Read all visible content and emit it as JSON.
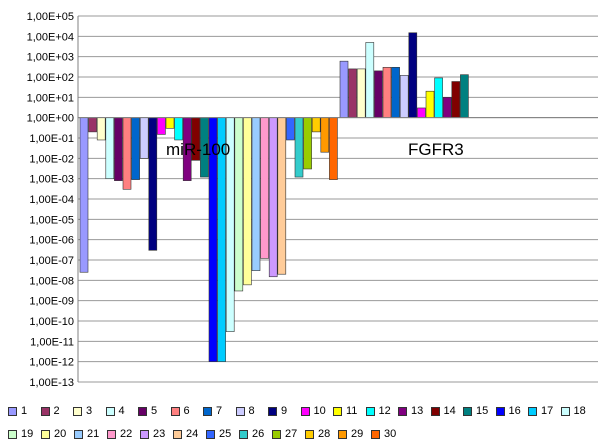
{
  "chart_data": {
    "type": "bar",
    "log_scale": true,
    "ylim": [
      1e-13,
      100000.0
    ],
    "y_tick_labels": [
      "1,00E+05",
      "1,00E+04",
      "1,00E+03",
      "1,00E+02",
      "1,00E+01",
      "1,00E+00",
      "1,00E-01",
      "1,00E-02",
      "1,00E-03",
      "1,00E-04",
      "1,00E-05",
      "1,00E-06",
      "1,00E-07",
      "1,00E-08",
      "1,00E-09",
      "1,00E-10",
      "1,00E-11",
      "1,00E-12",
      "1,00E-13"
    ],
    "grid": true,
    "legend_position": "bottom",
    "categories": [
      "miR-100",
      "FGFR3"
    ],
    "series": [
      {
        "name": "1",
        "color": "#9999FF",
        "values": [
          2.5e-08,
          600
        ]
      },
      {
        "name": "2",
        "color": "#993366",
        "values": [
          0.2,
          250
        ]
      },
      {
        "name": "3",
        "color": "#FFFFCC",
        "values": [
          0.08,
          250
        ]
      },
      {
        "name": "4",
        "color": "#CCFFFF",
        "values": [
          0.001,
          5000
        ]
      },
      {
        "name": "5",
        "color": "#660066",
        "values": [
          0.0008,
          200
        ]
      },
      {
        "name": "6",
        "color": "#FF8080",
        "values": [
          0.0003,
          300
        ]
      },
      {
        "name": "7",
        "color": "#0066CC",
        "values": [
          0.0009,
          300
        ]
      },
      {
        "name": "8",
        "color": "#CCCCFF",
        "values": [
          0.01,
          120
        ]
      },
      {
        "name": "9",
        "color": "#000080",
        "values": [
          3e-07,
          15000
        ]
      },
      {
        "name": "10",
        "color": "#FF00FF",
        "values": [
          0.15,
          3
        ]
      },
      {
        "name": "11",
        "color": "#FFFF00",
        "values": [
          0.3,
          20
        ]
      },
      {
        "name": "12",
        "color": "#00FFFF",
        "values": [
          0.08,
          90
        ]
      },
      {
        "name": "13",
        "color": "#800080",
        "values": [
          0.0008,
          10
        ]
      },
      {
        "name": "14",
        "color": "#800000",
        "values": [
          0.008,
          60
        ]
      },
      {
        "name": "15",
        "color": "#008080",
        "values": [
          0.0012,
          130
        ]
      },
      {
        "name": "16",
        "color": "#0000FF",
        "values": [
          1e-12,
          null
        ]
      },
      {
        "name": "17",
        "color": "#00CCFF",
        "values": [
          1e-12,
          null
        ]
      },
      {
        "name": "18",
        "color": "#CCFFFF",
        "values": [
          3e-11,
          null
        ]
      },
      {
        "name": "19",
        "color": "#CCFFCC",
        "values": [
          3e-09,
          null
        ]
      },
      {
        "name": "20",
        "color": "#FFFF99",
        "values": [
          6e-09,
          null
        ]
      },
      {
        "name": "21",
        "color": "#99CCFF",
        "values": [
          3e-08,
          null
        ]
      },
      {
        "name": "22",
        "color": "#FF99CC",
        "values": [
          1.2e-07,
          null
        ]
      },
      {
        "name": "23",
        "color": "#CC99FF",
        "values": [
          1.5e-08,
          null
        ]
      },
      {
        "name": "24",
        "color": "#FFCC99",
        "values": [
          2e-08,
          null
        ]
      },
      {
        "name": "25",
        "color": "#3366FF",
        "values": [
          0.08,
          null
        ]
      },
      {
        "name": "26",
        "color": "#33CCCC",
        "values": [
          0.0012,
          null
        ]
      },
      {
        "name": "27",
        "color": "#99CC00",
        "values": [
          0.003,
          null
        ]
      },
      {
        "name": "28",
        "color": "#FFCC00",
        "values": [
          0.2,
          null
        ]
      },
      {
        "name": "29",
        "color": "#FF9900",
        "values": [
          0.02,
          null
        ]
      },
      {
        "name": "30",
        "color": "#FF6600",
        "values": [
          0.0009,
          null
        ]
      }
    ]
  }
}
